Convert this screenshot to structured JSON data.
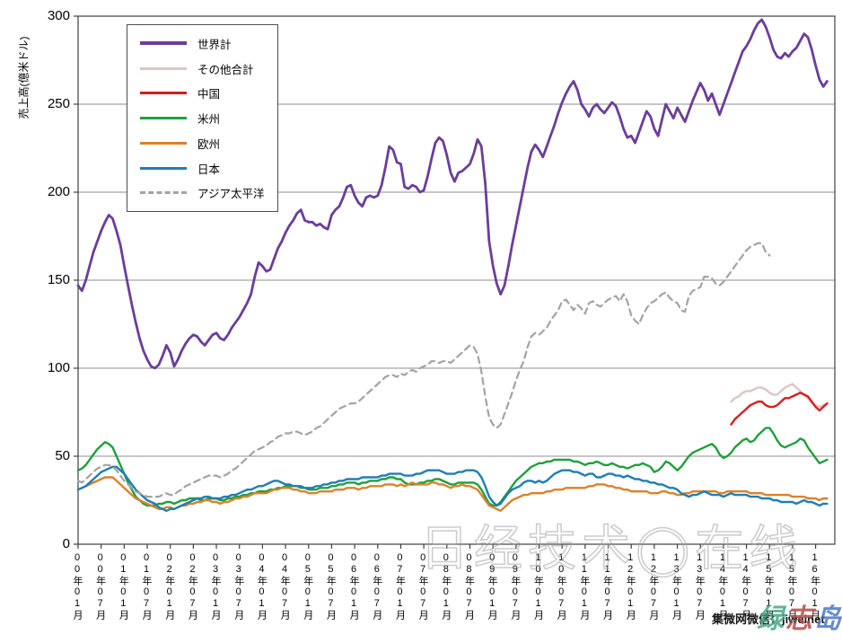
{
  "axis": {
    "ylabel": "売上高(億米ドル)",
    "yticks": [
      0,
      50,
      100,
      150,
      200,
      250,
      300
    ],
    "xtick_labels": [
      "00年01月",
      "00年07月",
      "01年01月",
      "01年07月",
      "02年01月",
      "02年07月",
      "03年01月",
      "03年07月",
      "04年01月",
      "04年07月",
      "05年01月",
      "05年07月",
      "06年01月",
      "06年07月",
      "07年01月",
      "07年07月",
      "08年01月",
      "08年07月",
      "09年01月",
      "09年07月",
      "10年01月",
      "10年07月",
      "11年01月",
      "11年07月",
      "12年01月",
      "12年07月",
      "13年01月",
      "13年07月",
      "14年01月",
      "14年07月",
      "15年01月",
      "15年07月",
      "16年01月"
    ],
    "xtick_month_indices": [
      0,
      6,
      12,
      18,
      24,
      30,
      36,
      42,
      48,
      54,
      60,
      66,
      72,
      78,
      84,
      90,
      96,
      102,
      108,
      114,
      120,
      126,
      132,
      138,
      144,
      150,
      156,
      162,
      168,
      174,
      180,
      186,
      192
    ]
  },
  "watermarks": {
    "center": "日经技术◯在线",
    "bottom_black": "集微网微信：jiweinet",
    "bottom_color": [
      {
        "ch": "绿",
        "color": "#3aa17e"
      },
      {
        "ch": "志",
        "color": "#b0413e"
      },
      {
        "ch": "岛",
        "color": "#3f6fc4"
      }
    ]
  },
  "chart_data": {
    "type": "line",
    "title": "",
    "xlabel": "",
    "ylabel": "売上高(億米ドル)",
    "ylim": [
      0,
      300
    ],
    "grid": true,
    "legend_position": "top-left",
    "x_unit": "month",
    "x_start": "2000-01",
    "x_end": "2016-04",
    "total_months_axis": 197,
    "series": [
      {
        "name": "世界計",
        "color": "#6a3d9b",
        "width": 2.8,
        "dash": false,
        "start_index": 0,
        "values": [
          147,
          144,
          150,
          158,
          166,
          172,
          178,
          183,
          187,
          185,
          178,
          170,
          158,
          147,
          136,
          126,
          117,
          110,
          105,
          101,
          100,
          102,
          107,
          113,
          109,
          101,
          105,
          110,
          114,
          117,
          119,
          118,
          115,
          113,
          116,
          119,
          120,
          117,
          116,
          119,
          123,
          126,
          129,
          133,
          137,
          142,
          152,
          160,
          158,
          155,
          156,
          162,
          168,
          172,
          177,
          181,
          184,
          188,
          190,
          184,
          183,
          183,
          181,
          182,
          180,
          179,
          187,
          190,
          192,
          197,
          203,
          204,
          198,
          194,
          192,
          197,
          198,
          197,
          198,
          204,
          214,
          226,
          224,
          217,
          216,
          203,
          202,
          204,
          203,
          200,
          201,
          209,
          219,
          228,
          231,
          229,
          221,
          211,
          206,
          211,
          212,
          214,
          216,
          222,
          230,
          226,
          205,
          172,
          158,
          148,
          142,
          147,
          158,
          170,
          181,
          192,
          203,
          214,
          223,
          227,
          224,
          220,
          226,
          232,
          238,
          245,
          251,
          256,
          260,
          263,
          258,
          250,
          247,
          243,
          248,
          250,
          247,
          245,
          248,
          251,
          249,
          243,
          236,
          231,
          232,
          228,
          234,
          240,
          246,
          243,
          236,
          232,
          241,
          250,
          246,
          242,
          248,
          244,
          240,
          246,
          252,
          257,
          262,
          258,
          252,
          256,
          250,
          244,
          250,
          256,
          262,
          268,
          274,
          280,
          283,
          287,
          292,
          296,
          298,
          294,
          288,
          281,
          277,
          276,
          279,
          277,
          280,
          282,
          286,
          290,
          288,
          281,
          272,
          264,
          260,
          263
        ]
      },
      {
        "name": "その他合計",
        "color": "#dcc5c5",
        "width": 2.4,
        "dash": false,
        "start_index": 170,
        "values": [
          81,
          83,
          84,
          86,
          87,
          87,
          88,
          89,
          89,
          88,
          86,
          85,
          85,
          87,
          89,
          90,
          91,
          89,
          87,
          85,
          83,
          80,
          79,
          78,
          79,
          80
        ]
      },
      {
        "name": "中国",
        "color": "#d42020",
        "width": 2.4,
        "dash": false,
        "start_index": 170,
        "values": [
          68,
          71,
          73,
          75,
          77,
          79,
          80,
          81,
          81,
          79,
          78,
          78,
          79,
          81,
          83,
          83,
          84,
          85,
          86,
          85,
          84,
          81,
          78,
          76,
          78,
          80
        ]
      },
      {
        "name": "米州",
        "color": "#1fa03c",
        "width": 2.4,
        "dash": false,
        "start_index": 0,
        "values": [
          42,
          43,
          45,
          48,
          51,
          54,
          56,
          58,
          57,
          55,
          50,
          45,
          40,
          35,
          31,
          27,
          25,
          23,
          22,
          22,
          22,
          23,
          23,
          24,
          24,
          23,
          24,
          25,
          25,
          26,
          26,
          26,
          25,
          25,
          26,
          26,
          26,
          25,
          25,
          26,
          26,
          27,
          27,
          28,
          28,
          29,
          29,
          30,
          30,
          30,
          31,
          31,
          32,
          32,
          33,
          33,
          33,
          33,
          32,
          32,
          31,
          31,
          31,
          32,
          32,
          32,
          33,
          33,
          34,
          34,
          35,
          35,
          35,
          34,
          35,
          35,
          36,
          36,
          36,
          37,
          37,
          38,
          38,
          37,
          37,
          35,
          34,
          34,
          34,
          35,
          35,
          36,
          36,
          37,
          37,
          36,
          35,
          34,
          34,
          35,
          35,
          35,
          35,
          35,
          34,
          31,
          27,
          23,
          22,
          22,
          24,
          27,
          30,
          33,
          36,
          38,
          40,
          42,
          44,
          45,
          46,
          46,
          47,
          47,
          48,
          48,
          48,
          48,
          48,
          47,
          47,
          46,
          45,
          46,
          46,
          47,
          46,
          45,
          45,
          46,
          45,
          44,
          44,
          43,
          44,
          45,
          45,
          46,
          45,
          44,
          41,
          42,
          44,
          47,
          46,
          44,
          42,
          44,
          47,
          50,
          52,
          53,
          54,
          55,
          56,
          57,
          55,
          51,
          49,
          50,
          52,
          55,
          57,
          59,
          60,
          58,
          59,
          62,
          64,
          66,
          66,
          63,
          59,
          56,
          55,
          56,
          57,
          58,
          60,
          59,
          55,
          52,
          49,
          46,
          47,
          48
        ]
      },
      {
        "name": "欧州",
        "color": "#d9822b",
        "width": 2.4,
        "dash": false,
        "start_index": 0,
        "values": [
          31,
          32,
          33,
          34,
          35,
          36,
          37,
          38,
          38,
          38,
          36,
          34,
          32,
          30,
          28,
          26,
          25,
          24,
          23,
          22,
          21,
          20,
          20,
          21,
          21,
          20,
          21,
          22,
          22,
          23,
          23,
          24,
          24,
          25,
          25,
          24,
          24,
          23,
          24,
          24,
          25,
          26,
          26,
          27,
          27,
          28,
          29,
          29,
          29,
          29,
          30,
          31,
          31,
          32,
          32,
          32,
          31,
          31,
          30,
          30,
          29,
          29,
          29,
          30,
          30,
          30,
          30,
          31,
          31,
          31,
          32,
          32,
          32,
          31,
          32,
          32,
          33,
          33,
          33,
          33,
          34,
          34,
          34,
          33,
          34,
          33,
          34,
          35,
          34,
          34,
          34,
          34,
          35,
          35,
          34,
          34,
          33,
          32,
          33,
          33,
          34,
          33,
          33,
          32,
          31,
          28,
          25,
          22,
          21,
          20,
          19,
          21,
          23,
          25,
          26,
          27,
          28,
          28,
          29,
          29,
          29,
          29,
          30,
          30,
          31,
          31,
          31,
          32,
          32,
          32,
          32,
          32,
          32,
          33,
          33,
          34,
          34,
          34,
          33,
          33,
          32,
          32,
          31,
          31,
          30,
          30,
          30,
          30,
          30,
          29,
          29,
          29,
          30,
          30,
          29,
          29,
          28,
          28,
          29,
          29,
          30,
          30,
          30,
          30,
          30,
          30,
          30,
          29,
          29,
          30,
          30,
          30,
          30,
          30,
          30,
          29,
          29,
          29,
          29,
          28,
          28,
          28,
          28,
          28,
          28,
          28,
          27,
          27,
          27,
          27,
          26,
          26,
          26,
          25,
          26,
          26
        ]
      },
      {
        "name": "日本",
        "color": "#1f7eb4",
        "width": 2.4,
        "dash": false,
        "start_index": 0,
        "values": [
          31,
          32,
          33,
          35,
          37,
          39,
          41,
          42,
          43,
          44,
          44,
          42,
          40,
          37,
          34,
          31,
          29,
          27,
          25,
          24,
          23,
          21,
          20,
          19,
          20,
          20,
          21,
          22,
          23,
          24,
          25,
          26,
          26,
          27,
          27,
          26,
          26,
          26,
          27,
          27,
          28,
          28,
          29,
          30,
          31,
          31,
          32,
          33,
          33,
          34,
          35,
          36,
          36,
          35,
          34,
          34,
          33,
          33,
          33,
          32,
          32,
          32,
          33,
          33,
          34,
          34,
          35,
          35,
          36,
          36,
          37,
          37,
          37,
          37,
          38,
          38,
          38,
          38,
          38,
          39,
          39,
          40,
          40,
          40,
          40,
          39,
          39,
          39,
          40,
          40,
          41,
          42,
          42,
          42,
          42,
          41,
          40,
          40,
          40,
          41,
          41,
          42,
          42,
          42,
          41,
          38,
          33,
          27,
          24,
          22,
          23,
          26,
          29,
          31,
          32,
          33,
          35,
          36,
          36,
          35,
          36,
          35,
          36,
          38,
          40,
          41,
          42,
          42,
          42,
          41,
          41,
          40,
          39,
          40,
          40,
          38,
          38,
          39,
          40,
          40,
          39,
          39,
          38,
          39,
          38,
          37,
          37,
          36,
          36,
          35,
          35,
          34,
          34,
          33,
          32,
          32,
          31,
          29,
          28,
          27,
          28,
          28,
          29,
          30,
          29,
          28,
          28,
          28,
          27,
          28,
          29,
          28,
          28,
          28,
          28,
          27,
          27,
          27,
          26,
          26,
          26,
          25,
          25,
          24,
          24,
          24,
          24,
          23,
          24,
          25,
          24,
          24,
          23,
          22,
          23,
          23
        ]
      },
      {
        "name": "アジア太平洋",
        "color": "#a3a3a3",
        "width": 2.2,
        "dash": true,
        "start_index": 0,
        "values": [
          36,
          35,
          37,
          39,
          41,
          43,
          44,
          45,
          45,
          44,
          42,
          39,
          36,
          34,
          32,
          30,
          29,
          28,
          27,
          27,
          27,
          27,
          28,
          29,
          28,
          28,
          30,
          31,
          33,
          34,
          35,
          36,
          37,
          38,
          39,
          39,
          39,
          38,
          39,
          40,
          42,
          43,
          45,
          47,
          49,
          51,
          53,
          54,
          55,
          56,
          58,
          59,
          61,
          62,
          63,
          63,
          64,
          64,
          63,
          62,
          63,
          64,
          66,
          67,
          69,
          71,
          73,
          75,
          77,
          78,
          79,
          80,
          80,
          81,
          83,
          85,
          87,
          89,
          91,
          93,
          95,
          96,
          96,
          95,
          97,
          96,
          98,
          99,
          98,
          100,
          101,
          102,
          104,
          104,
          103,
          104,
          104,
          103,
          105,
          107,
          109,
          111,
          113,
          112,
          108,
          98,
          84,
          72,
          68,
          66,
          68,
          74,
          80,
          86,
          93,
          99,
          104,
          112,
          118,
          120,
          119,
          121,
          123,
          127,
          130,
          133,
          138,
          139,
          136,
          133,
          136,
          134,
          131,
          137,
          138,
          136,
          135,
          137,
          139,
          140,
          141,
          138,
          142,
          138,
          130,
          127,
          125,
          130,
          134,
          137,
          138,
          140,
          142,
          143,
          140,
          138,
          137,
          133,
          132,
          141,
          144,
          145,
          146,
          152,
          152,
          151,
          148,
          147,
          149,
          152,
          155,
          158,
          161,
          164,
          167,
          169,
          170,
          171,
          171,
          166,
          164
        ]
      }
    ]
  }
}
